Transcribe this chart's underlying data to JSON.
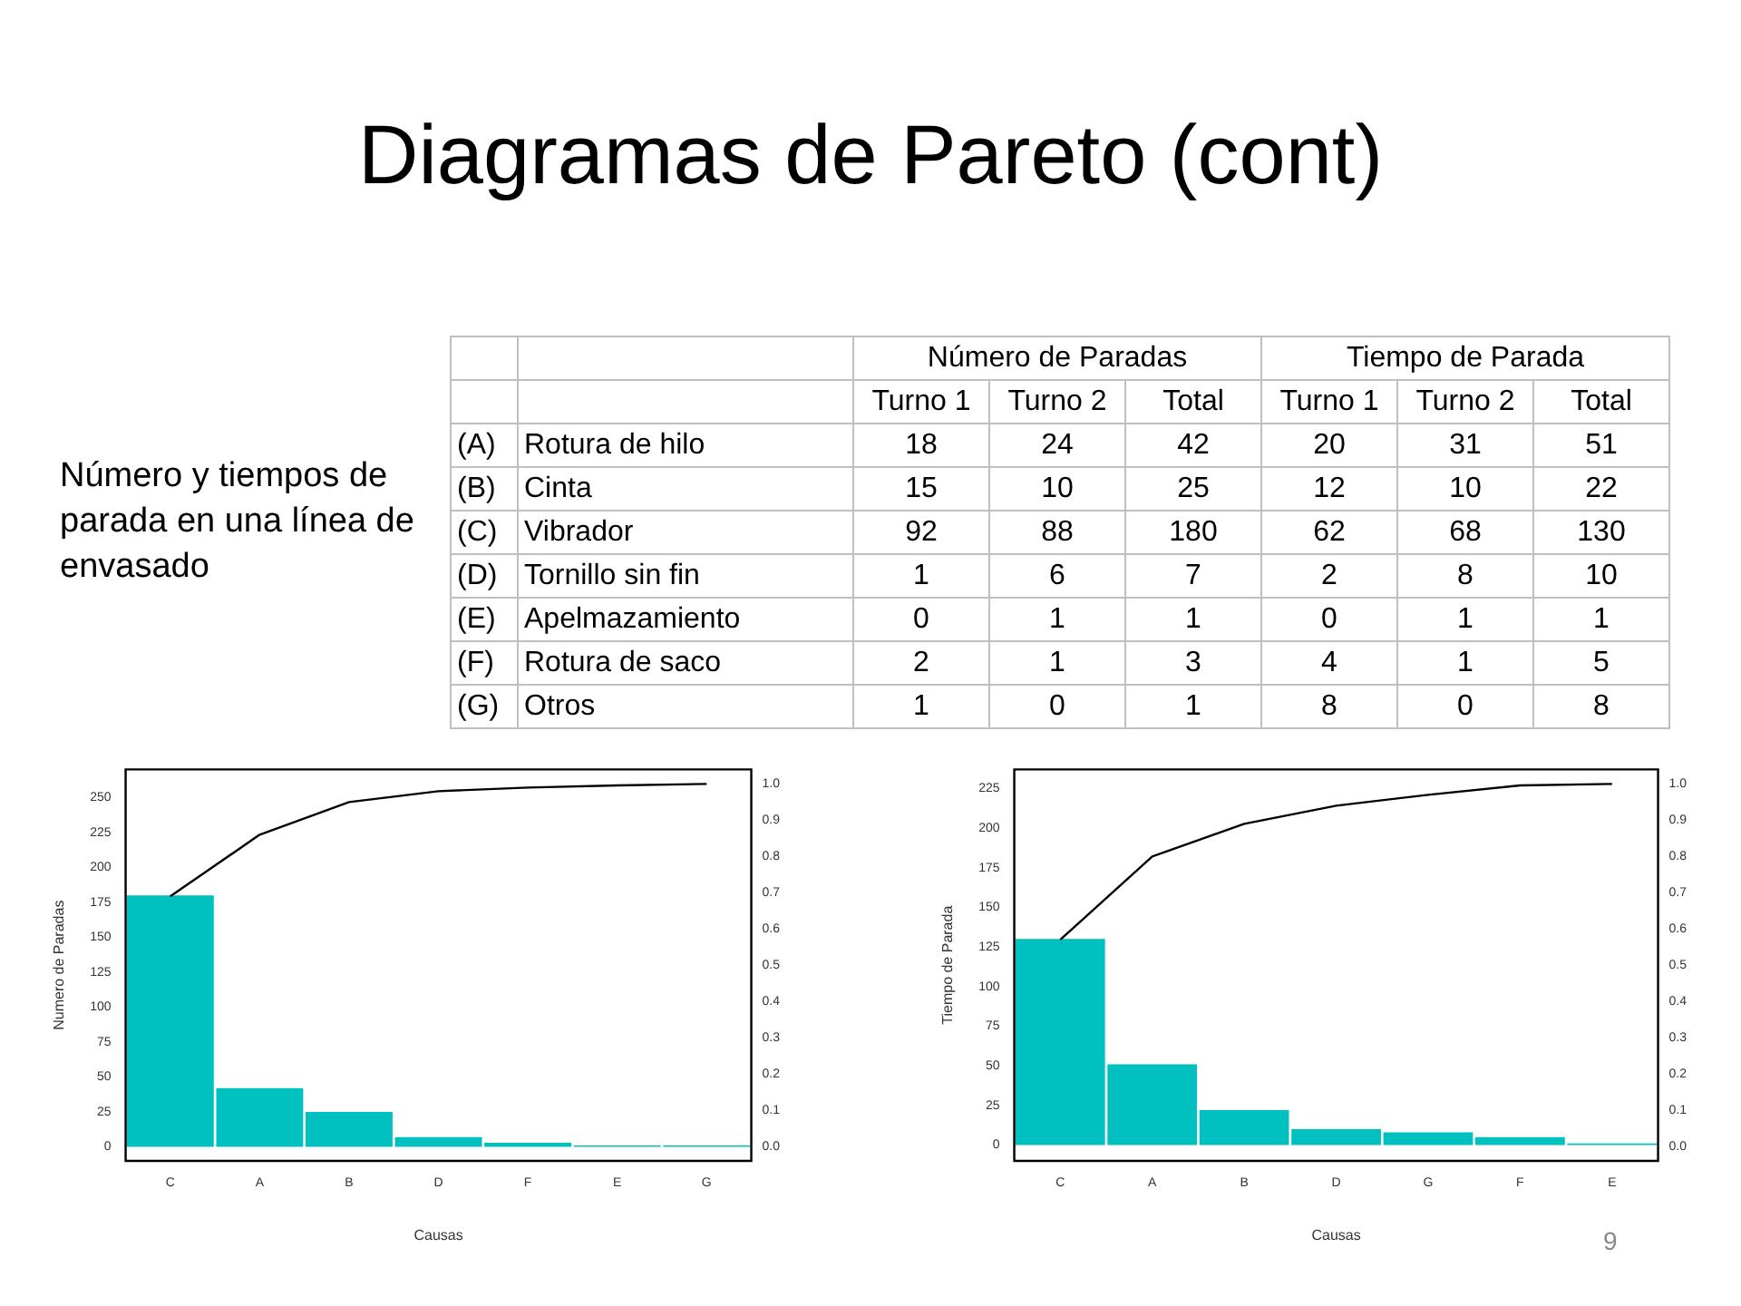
{
  "chart_data": [
    {
      "type": "other",
      "title": "Diagramas de Pareto (cont)",
      "annotations": [
        "Número y tiempos de parada en una línea de envasado",
        "9"
      ]
    },
    {
      "type": "other",
      "categories": [
        "(A) Rotura de hilo",
        "(B) Cinta",
        "(C) Vibrador",
        "(D) Tornillo sin fin",
        "(E) Apelmazamiento",
        "(F) Rotura de saco",
        "(G) Otros"
      ],
      "annotations": [
        "Número de Paradas",
        "Tiempo de Parada"
      ],
      "data_labels": true,
      "series": [
        {
          "name": "Turno 1",
          "values": [
            18,
            15,
            92,
            1,
            0,
            2,
            1
          ]
        },
        {
          "name": "Turno 2",
          "values": [
            24,
            10,
            88,
            6,
            1,
            1,
            0
          ]
        },
        {
          "name": "Total",
          "values": [
            42,
            25,
            180,
            7,
            1,
            3,
            1
          ]
        },
        {
          "name": "Turno 1",
          "values": [
            20,
            12,
            62,
            2,
            0,
            4,
            8
          ]
        },
        {
          "name": "Turno 2",
          "values": [
            31,
            10,
            68,
            8,
            1,
            1,
            0
          ]
        },
        {
          "name": "Total",
          "values": [
            51,
            22,
            130,
            10,
            1,
            5,
            8
          ]
        }
      ]
    },
    {
      "type": "bar",
      "categories": [
        "C",
        "A",
        "B",
        "D",
        "F",
        "E",
        "G"
      ],
      "xlabel": "Causas",
      "ylabel": "Numero de Paradas",
      "ylim": [
        -10,
        270
      ],
      "yticks": [
        0,
        25,
        50,
        75,
        100,
        125,
        150,
        175,
        200,
        225,
        250
      ],
      "y2lim": [
        -0.04,
        1.04
      ],
      "y2ticks": [
        {
          "value": 0,
          "label": "0.0"
        },
        {
          "value": 0.1,
          "label": "0.1"
        },
        {
          "value": 0.2,
          "label": "0.2"
        },
        {
          "value": 0.3,
          "label": "0.3"
        },
        {
          "value": 0.4,
          "label": "0.4"
        },
        {
          "value": 0.5,
          "label": "0.5"
        },
        {
          "value": 0.6,
          "label": "0.6"
        },
        {
          "value": 0.7,
          "label": "0.7"
        },
        {
          "value": 0.8,
          "label": "0.8"
        },
        {
          "value": 0.9,
          "label": "0.9"
        },
        {
          "value": 1,
          "label": "1.0"
        }
      ],
      "series": [
        {
          "type": "bar",
          "color": "#00c0c0",
          "values": [
            180,
            42,
            25,
            7,
            3,
            1,
            1
          ]
        },
        {
          "type": "line",
          "axis": "y2",
          "color": "#000000",
          "values": [
            0.69,
            0.86,
            0.95,
            0.98,
            0.99,
            0.996,
            1.0
          ]
        }
      ]
    },
    {
      "type": "bar",
      "categories": [
        "C",
        "A",
        "B",
        "D",
        "G",
        "F",
        "E"
      ],
      "xlabel": "Causas",
      "ylabel": "Tiempo de Parada",
      "ylim": [
        -10,
        237
      ],
      "yticks": [
        0,
        25,
        50,
        75,
        100,
        125,
        150,
        175,
        200,
        225
      ],
      "y2lim": [
        -0.04,
        1.04
      ],
      "y2ticks": [
        {
          "value": 0,
          "label": "0.0"
        },
        {
          "value": 0.1,
          "label": "0.1"
        },
        {
          "value": 0.2,
          "label": "0.2"
        },
        {
          "value": 0.3,
          "label": "0.3"
        },
        {
          "value": 0.4,
          "label": "0.4"
        },
        {
          "value": 0.5,
          "label": "0.5"
        },
        {
          "value": 0.6,
          "label": "0.6"
        },
        {
          "value": 0.7,
          "label": "0.7"
        },
        {
          "value": 0.8,
          "label": "0.8"
        },
        {
          "value": 0.9,
          "label": "0.9"
        },
        {
          "value": 1,
          "label": "1.0"
        }
      ],
      "series": [
        {
          "type": "bar",
          "color": "#00c0c0",
          "values": [
            130,
            51,
            22,
            10,
            8,
            5,
            1
          ]
        },
        {
          "type": "line",
          "axis": "y2",
          "color": "#000000",
          "values": [
            0.57,
            0.8,
            0.89,
            0.94,
            0.97,
            0.996,
            1.0
          ]
        }
      ]
    }
  ]
}
